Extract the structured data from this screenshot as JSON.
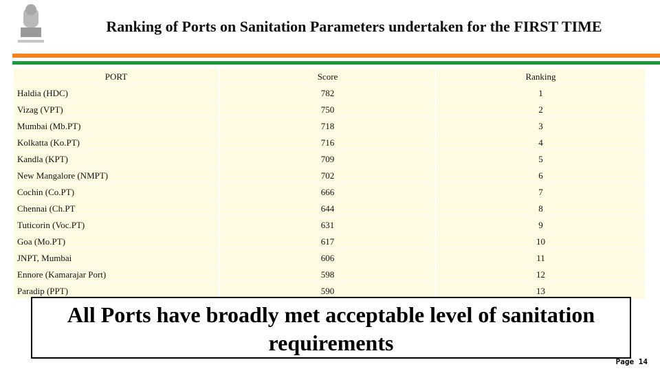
{
  "header": {
    "title": "Ranking of Ports on Sanitation Parameters undertaken for the FIRST TIME"
  },
  "table": {
    "columns": [
      "PORT",
      "Score",
      "Ranking"
    ],
    "rows": [
      [
        "Haldia (HDC)",
        782,
        1
      ],
      [
        "Vizag (VPT)",
        750,
        2
      ],
      [
        "Mumbai (Mb.PT)",
        718,
        3
      ],
      [
        "Kolkatta (Ko.PT)",
        716,
        4
      ],
      [
        "Kandla (KPT)",
        709,
        5
      ],
      [
        "New Mangalore (NMPT)",
        702,
        6
      ],
      [
        "Cochin (Co.PT)",
        666,
        7
      ],
      [
        "Chennai (Ch.PT",
        644,
        8
      ],
      [
        "Tuticorin (Voc.PT)",
        631,
        9
      ],
      [
        "Goa (Mo.PT)",
        617,
        10
      ],
      [
        "JNPT, Mumbai",
        606,
        11
      ],
      [
        "Ennore (Kamarajar Port)",
        598,
        12
      ],
      [
        "Paradip (PPT)",
        590,
        13
      ]
    ]
  },
  "note": "All Ports have broadly met acceptable level of sanitation requirements",
  "footer": {
    "page": "Page 14"
  }
}
